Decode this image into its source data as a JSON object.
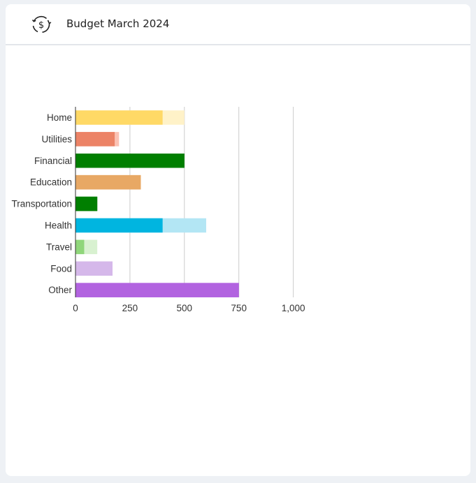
{
  "header": {
    "title": "Budget March 2024",
    "icon": "dollar-cycle-icon"
  },
  "colors": {
    "page_background": "#eef1f5",
    "card_background": "#ffffff",
    "gridline": "#cccccc",
    "axis": "#333333"
  },
  "chart_data": {
    "type": "bar",
    "orientation": "horizontal",
    "categories": [
      "Home",
      "Utilities",
      "Financial",
      "Education",
      "Transportation",
      "Health",
      "Travel",
      "Food",
      "Other"
    ],
    "series": [
      {
        "values": [
          500,
          200,
          500,
          300,
          100,
          600,
          100,
          170,
          750
        ],
        "colors": [
          "#fff2c8",
          "#fbc2b4",
          "#007f00",
          "#e8a864",
          "#007f00",
          "#b3e6f4",
          "#d8f1d0",
          "#d5b8ea",
          "#b263e0"
        ]
      },
      {
        "values": [
          400,
          180,
          500,
          300,
          100,
          400,
          40,
          170,
          750
        ],
        "colors": [
          "#ffd966",
          "#ec8366",
          "#007f00",
          "#e8a864",
          "#007f00",
          "#00b5e0",
          "#8fd67a",
          "#d5b8ea",
          "#b263e0"
        ]
      }
    ],
    "xlim": [
      0,
      1000
    ],
    "xticks": [
      0,
      250,
      500,
      750,
      1000
    ],
    "xtick_labels": [
      "0",
      "250",
      "500",
      "750",
      "1,000"
    ],
    "grid": true,
    "legend": "none"
  }
}
